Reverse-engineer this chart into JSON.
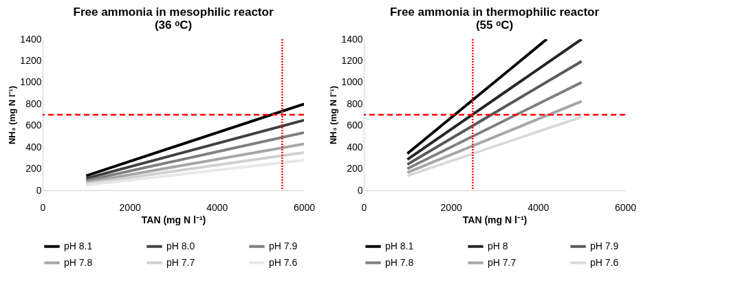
{
  "chart_data": [
    {
      "type": "line",
      "title": "Free ammonia in mesophilic reactor\n(36 ᵒC)",
      "xlabel": "TAN (mg N l⁻¹)",
      "ylabel": "NH₃ (mg N l⁻¹)",
      "x": [
        1000,
        6000
      ],
      "xlim": [
        0,
        6000
      ],
      "xticks": [
        0,
        2000,
        4000,
        6000
      ],
      "ylim": [
        0,
        1400
      ],
      "yticks": [
        0,
        200,
        400,
        600,
        800,
        1000,
        1200,
        1400
      ],
      "grid": false,
      "legend": "bottom",
      "series": [
        {
          "name": "pH 8.1",
          "color": "#000000",
          "values": [
            135,
            800
          ]
        },
        {
          "name": "pH 8.0",
          "color": "#404040",
          "values": [
            110,
            650
          ]
        },
        {
          "name": "pH 7.9",
          "color": "#7f7f7f",
          "values": [
            90,
            535
          ]
        },
        {
          "name": "pH 7.8",
          "color": "#a6a6a6",
          "values": [
            73,
            430
          ]
        },
        {
          "name": "pH 7.7",
          "color": "#d0d0d0",
          "values": [
            60,
            350
          ]
        },
        {
          "name": "pH 7.6",
          "color": "#e8e8e8",
          "values": [
            48,
            280
          ]
        }
      ],
      "ref_lines": [
        {
          "axis": "y",
          "value": 700,
          "color": "#ff0000",
          "line_style": "dashed"
        },
        {
          "axis": "x",
          "value": 5500,
          "color": "#ff0000",
          "line_style": "dotted"
        }
      ]
    },
    {
      "type": "line",
      "title": "Free ammonia in thermophilic reactor\n(55 ᵒC)",
      "xlabel": "TAN (mg N l⁻¹)",
      "ylabel": "NH₃ (mg N l⁻¹)",
      "x": [
        1000,
        5000
      ],
      "xlim": [
        0,
        6000
      ],
      "xticks": [
        0,
        2000,
        4000,
        6000
      ],
      "ylim": [
        0,
        1400
      ],
      "yticks": [
        0,
        200,
        400,
        600,
        800,
        1000,
        1200,
        1400
      ],
      "grid": false,
      "legend": "bottom",
      "series": [
        {
          "name": "pH 8.1",
          "color": "#000000",
          "x": [
            1000,
            4200
          ],
          "values": [
            340,
            1400
          ]
        },
        {
          "name": "pH 8",
          "color": "#262626",
          "values": [
            285,
            1400
          ]
        },
        {
          "name": "pH 7.9",
          "color": "#595959",
          "values": [
            240,
            1195
          ]
        },
        {
          "name": "pH 7.8",
          "color": "#7f7f7f",
          "values": [
            200,
            1000
          ]
        },
        {
          "name": "pH 7.7",
          "color": "#a6a6a6",
          "values": [
            165,
            825
          ]
        },
        {
          "name": "pH 7.6",
          "color": "#d9d9d9",
          "values": [
            135,
            680
          ]
        }
      ],
      "ref_lines": [
        {
          "axis": "y",
          "value": 700,
          "color": "#ff0000",
          "line_style": "dashed"
        },
        {
          "axis": "x",
          "value": 2500,
          "color": "#ff0000",
          "line_style": "dotted"
        }
      ]
    }
  ]
}
